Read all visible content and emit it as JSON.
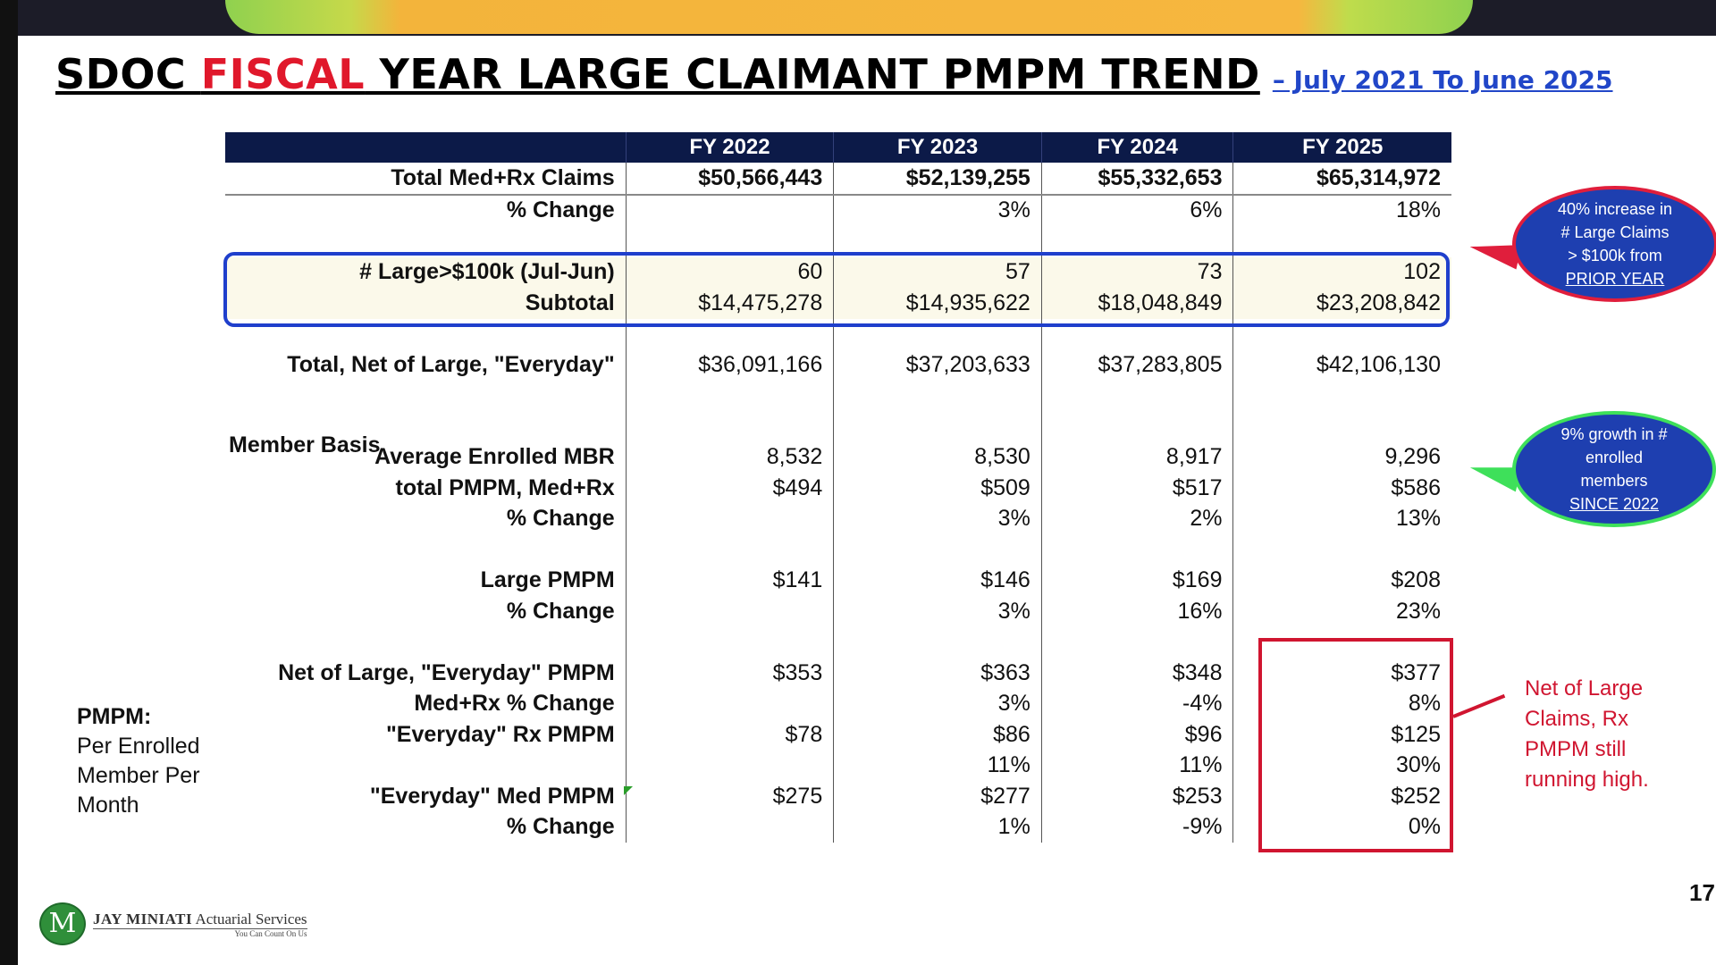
{
  "title": {
    "part1": "SDOC ",
    "part2": "FISCAL",
    "part3": " YEAR LARGE CLAIMANT PMPM TREND",
    "subtitle": "– July 2021 To June 2025"
  },
  "table": {
    "headers": [
      "FY 2022",
      "FY 2023",
      "FY 2024",
      "FY 2025"
    ],
    "rows": {
      "total_claims": {
        "label": "Total Med+Rx Claims",
        "values": [
          "$50,566,443",
          "$52,139,255",
          "$55,332,653",
          "$65,314,972"
        ]
      },
      "total_change": {
        "label": "% Change",
        "values": [
          "",
          "3%",
          "6%",
          "18%"
        ]
      },
      "large_count": {
        "label": "# Large>$100k (Jul-Jun)",
        "values": [
          "60",
          "57",
          "73",
          "102"
        ]
      },
      "large_subtotal": {
        "label": "Subtotal",
        "values": [
          "$14,475,278",
          "$14,935,622",
          "$18,048,849",
          "$23,208,842"
        ]
      },
      "net_of_large": {
        "label": "Total, Net of Large, \"Everyday\"",
        "values": [
          "$36,091,166",
          "$37,203,633",
          "$37,283,805",
          "$42,106,130"
        ]
      },
      "avg_enrolled": {
        "label": "Average Enrolled MBR",
        "values": [
          "8,532",
          "8,530",
          "8,917",
          "9,296"
        ]
      },
      "total_pmpm": {
        "label": "total PMPM, Med+Rx",
        "values": [
          "$494",
          "$509",
          "$517",
          "$586"
        ]
      },
      "total_pmpm_change": {
        "label": "% Change",
        "values": [
          "",
          "3%",
          "2%",
          "13%"
        ]
      },
      "large_pmpm": {
        "label": "Large PMPM",
        "values": [
          "$141",
          "$146",
          "$169",
          "$208"
        ]
      },
      "large_pmpm_change": {
        "label": "% Change",
        "values": [
          "",
          "3%",
          "16%",
          "23%"
        ]
      },
      "net_pmpm": {
        "label": "Net of Large, \"Everyday\" PMPM",
        "values": [
          "$353",
          "$363",
          "$348",
          "$377"
        ]
      },
      "medrx_change": {
        "label": "Med+Rx % Change",
        "values": [
          "",
          "3%",
          "-4%",
          "8%"
        ]
      },
      "rx_pmpm": {
        "label": "\"Everyday\" Rx PMPM",
        "values": [
          "$78",
          "$86",
          "$96",
          "$125"
        ]
      },
      "rx_change": {
        "label": "",
        "values": [
          "",
          "11%",
          "11%",
          "30%"
        ]
      },
      "med_pmpm": {
        "label": "\"Everyday\" Med PMPM",
        "values": [
          "$275",
          "$277",
          "$253",
          "$252"
        ]
      },
      "med_change": {
        "label": "% Change",
        "values": [
          "",
          "1%",
          "-9%",
          "0%"
        ]
      }
    }
  },
  "member_basis_label": "Member Basis",
  "pmpm_note": {
    "heading": "PMPM:",
    "line1": "Per Enrolled",
    "line2": "Member Per",
    "line3": "Month"
  },
  "callout_large": {
    "line1": "40% increase in",
    "line2": "# Large Claims",
    "line3": "> $100k from",
    "line4": "PRIOR YEAR"
  },
  "callout_members": {
    "line1": "9% growth in #",
    "line2": "enrolled",
    "line3": "members",
    "line4": "SINCE 2022"
  },
  "red_note": {
    "line1": "Net of Large",
    "line2": "Claims, Rx",
    "line3": "PMPM still",
    "line4": "running high."
  },
  "page_number": "17",
  "logo": {
    "initial": "M",
    "name": "JAY MINIATI",
    "suffix": "Actuarial Services",
    "tagline": "You Can Count On Us"
  },
  "colors": {
    "header_bg": "#0c1a48",
    "title_red": "#e0182b",
    "subtitle_blue": "#2146c8",
    "callout_blue": "#1e3fb0",
    "highlight_red": "#d01530",
    "highlight_blue": "#1f3fcc",
    "callout_green": "#3ee05a"
  }
}
